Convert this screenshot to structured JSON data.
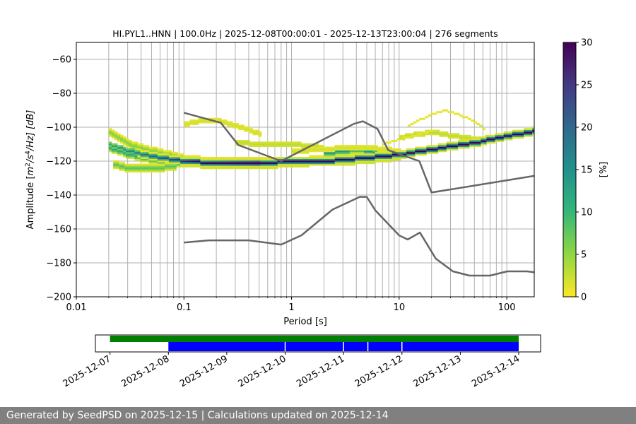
{
  "chart_data": [
    {
      "type": "heatmap",
      "title": "HI.PYL1..HNN | 100.0Hz | 2025-12-08T00:00:01 - 2025-12-13T23:00:04 | 276 segments",
      "xlabel": "Period [s]",
      "ylabel_parts": {
        "prefix": "Amplitude [",
        "m": "m",
        "m_exp": "2",
        "slash_s": "/s",
        "s_exp": "4",
        "suffix": "/Hz] [dB]"
      },
      "xscale": "log",
      "xlim": [
        0.01,
        180
      ],
      "ylim": [
        -200,
        -50
      ],
      "xticks": [
        0.01,
        0.1,
        1,
        10,
        100
      ],
      "xtick_labels": [
        "0.01",
        "0.1",
        "1",
        "10",
        "100"
      ],
      "yticks": [
        -200,
        -180,
        -160,
        -140,
        -120,
        -100,
        -80,
        -60
      ],
      "ytick_labels": [
        "−200",
        "−180",
        "−160",
        "−140",
        "−120",
        "−100",
        "−80",
        "−60"
      ],
      "grid": true,
      "colorbar": {
        "label": "[%]",
        "range": [
          0,
          30
        ],
        "ticks": [
          0,
          5,
          10,
          15,
          20,
          25,
          30
        ],
        "tick_labels": [
          "0",
          "5",
          "10",
          "15",
          "20",
          "25",
          "30"
        ],
        "colors": [
          "#fde725",
          "#90d743",
          "#35b779",
          "#21918c",
          "#31688e",
          "#443983",
          "#440154"
        ]
      },
      "mode_curve": {
        "period": [
          0.02,
          0.03,
          0.05,
          0.08,
          0.1,
          0.2,
          0.5,
          1,
          2,
          3,
          5,
          7,
          10,
          15,
          20,
          30,
          50,
          70,
          100,
          150,
          180
        ],
        "db": [
          -110,
          -114,
          -117,
          -119,
          -120,
          -121,
          -121,
          -120,
          -120,
          -119,
          -118,
          -117,
          -116,
          -114,
          -113,
          -111,
          -109,
          -107,
          -105,
          -103,
          -102
        ]
      },
      "density_bands": [
        {
          "period": [
            0.02,
            0.03,
            0.05,
            0.08,
            0.1,
            0.2,
            0.5,
            1,
            2,
            3,
            5,
            7,
            10
          ],
          "db": [
            -103,
            -110,
            -114,
            -117,
            -119,
            -120,
            -120,
            -120,
            -119,
            -118,
            -117,
            -116,
            -115
          ],
          "percent": 6
        },
        {
          "period": [
            0.02,
            0.03,
            0.05,
            0.08,
            0.1,
            0.2,
            0.5,
            1,
            2,
            3,
            5,
            7,
            10
          ],
          "db": [
            -112,
            -116,
            -119,
            -121,
            -121,
            -122,
            -122,
            -121,
            -120,
            -120,
            -119,
            -118,
            -117
          ],
          "percent": 12
        },
        {
          "period": [
            0.022,
            0.03,
            0.05,
            0.08
          ],
          "db": [
            -122,
            -124,
            -124,
            -123
          ],
          "percent": 8
        },
        {
          "period": [
            2,
            3,
            4,
            5,
            6,
            7
          ],
          "db": [
            -115,
            -114,
            -113,
            -114,
            -115,
            -116
          ],
          "percent": 14
        },
        {
          "period": [
            0.1,
            0.15,
            0.2,
            0.3,
            0.5
          ],
          "db": [
            -98,
            -96,
            -96,
            -99,
            -104
          ],
          "percent": 2
        },
        {
          "period": [
            0.3,
            0.5,
            1,
            1.5,
            2
          ],
          "db": [
            -109,
            -110,
            -110,
            -111,
            -112
          ],
          "percent": 3
        },
        {
          "period": [
            1,
            2,
            3,
            5,
            7,
            10
          ],
          "db": [
            -114,
            -113,
            -112,
            -112,
            -113,
            -114
          ],
          "percent": 2
        },
        {
          "period": [
            10,
            15,
            20,
            25,
            30,
            40,
            50,
            70
          ],
          "db": [
            -106,
            -104,
            -103,
            -104,
            -105,
            -106,
            -107,
            -106
          ],
          "percent": 3
        },
        {
          "period": [
            12,
            17,
            20,
            25,
            30,
            40,
            50,
            60
          ],
          "db": [
            -99,
            -94,
            -92,
            -90,
            -91,
            -94,
            -97,
            -101
          ],
          "percent": 1
        },
        {
          "period": [
            7,
            10,
            15,
            20
          ],
          "db": [
            -110,
            -107,
            -104,
            -102
          ],
          "percent": 1
        }
      ],
      "noise_models": [
        {
          "period": [
            0.1,
            0.17,
            0.4,
            0.8,
            1.24,
            2.4,
            4.3,
            5,
            6,
            10,
            12,
            15.6,
            21.9,
            31.6,
            45,
            70,
            101,
            154,
            180
          ],
          "db": [
            -168,
            -166.7,
            -166.7,
            -169.2,
            -163.7,
            -148.6,
            -141.1,
            -141.1,
            -149,
            -163.8,
            -166.2,
            -162.1,
            -177.5,
            -185,
            -187.5,
            -187.5,
            -185,
            -185,
            -185.5
          ]
        },
        {
          "period": [
            0.1,
            0.22,
            0.32,
            0.8,
            3.8,
            4.6,
            6.3,
            7.9,
            15.4,
            20,
            180
          ],
          "db": [
            -91.5,
            -97.4,
            -110.5,
            -120,
            -98,
            -96.5,
            -101,
            -113.5,
            -120,
            -138.5,
            -128.7
          ]
        }
      ]
    },
    {
      "type": "timeline",
      "xlim": [
        "2025-12-06T18:00",
        "2025-12-14T09:00"
      ],
      "xtick_labels": [
        "2025-12-07",
        "2025-12-08",
        "2025-12-09",
        "2025-12-10",
        "2025-12-11",
        "2025-12-12",
        "2025-12-13",
        "2025-12-14"
      ],
      "data_span": {
        "start": "2025-12-07T00:00",
        "end": "2025-12-14T00:00",
        "color": "#008000"
      },
      "psd_span": {
        "start": "2025-12-08T00:00",
        "end": "2025-12-14T00:00",
        "color": "#0000ff",
        "gaps": [
          "2025-12-10T00:00",
          "2025-12-11T00:00",
          "2025-12-11T10:00",
          "2025-12-12T00:00"
        ]
      }
    }
  ],
  "footer": {
    "text": "Generated by SeedPSD on 2025-12-15 | Calculations updated on 2025-12-14"
  }
}
